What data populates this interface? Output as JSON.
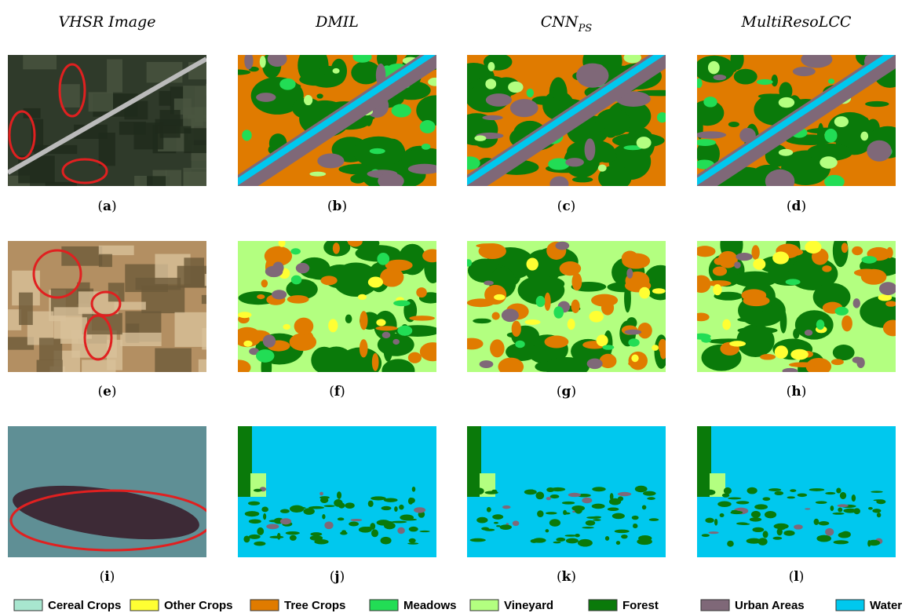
{
  "headers": [
    {
      "text": "VHSR Image"
    },
    {
      "text": "DMIL"
    },
    {
      "text": "CNN",
      "subscript": "PS"
    },
    {
      "text": "MultiResoLCC"
    }
  ],
  "panels": [
    "(a)",
    "(b)",
    "(c)",
    "(d)",
    "(e)",
    "(f)",
    "(g)",
    "(h)",
    "(i)",
    "(j)",
    "(k)",
    "(l)"
  ],
  "legend": [
    {
      "label": "Cereal Crops",
      "color": "#a8e6cf"
    },
    {
      "label": "Other Crops",
      "color": "#ffff33"
    },
    {
      "label": "Tree Crops",
      "color": "#e07b00"
    },
    {
      "label": "Meadows",
      "color": "#22dd55"
    },
    {
      "label": "Vineyard",
      "color": "#b3ff80"
    },
    {
      "label": "Forest",
      "color": "#0a7a0a"
    },
    {
      "label": "Urban Areas",
      "color": "#7f6878"
    },
    {
      "label": "Water",
      "color": "#00c8ee"
    }
  ]
}
